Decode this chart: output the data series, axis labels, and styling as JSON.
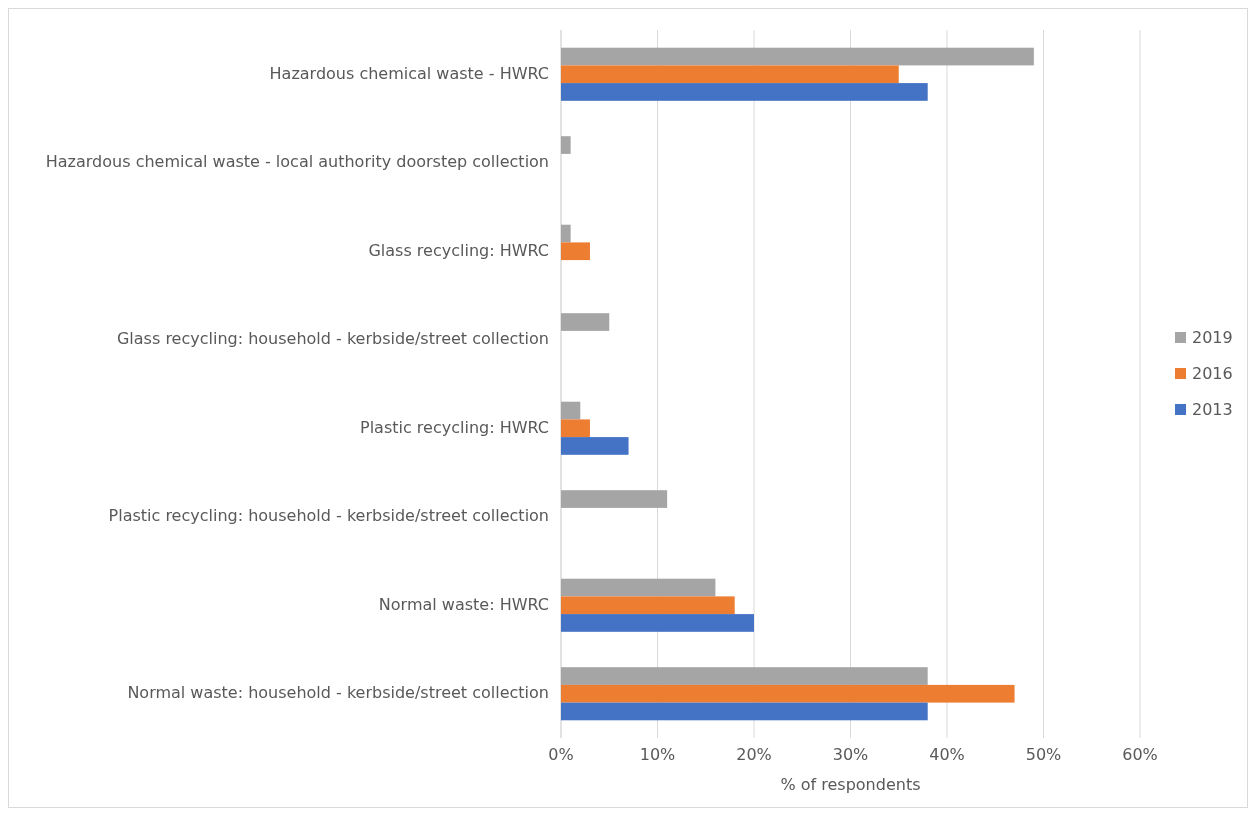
{
  "chart_data": {
    "type": "bar",
    "orientation": "horizontal",
    "xlabel": "% of respondents",
    "categories": [
      "Hazardous chemical waste - HWRC",
      "Hazardous chemical waste - local authority doorstep collection",
      "Glass recycling: HWRC",
      "Glass recycling: household - kerbside/street collection",
      "Plastic recycling: HWRC",
      "Plastic recycling: household - kerbside/street collection",
      "Normal waste: HWRC",
      "Normal waste: household - kerbside/street collection"
    ],
    "series": [
      {
        "name": "2019",
        "color": "#a5a5a5",
        "values": [
          49,
          1,
          1,
          5,
          2,
          11,
          16,
          38
        ]
      },
      {
        "name": "2016",
        "color": "#ed7d31",
        "values": [
          35,
          null,
          3,
          null,
          3,
          null,
          18,
          47
        ]
      },
      {
        "name": "2013",
        "color": "#4472c4",
        "values": [
          38,
          null,
          null,
          null,
          7,
          null,
          20,
          38
        ]
      }
    ],
    "xlim": [
      0,
      60
    ],
    "xticks": [
      {
        "value": 0,
        "label": "0%"
      },
      {
        "value": 10,
        "label": "10%"
      },
      {
        "value": 20,
        "label": "20%"
      },
      {
        "value": 30,
        "label": "30%"
      },
      {
        "value": 40,
        "label": "40%"
      },
      {
        "value": 50,
        "label": "50%"
      },
      {
        "value": 60,
        "label": "60%"
      }
    ],
    "grid": "x",
    "legend": "right"
  }
}
